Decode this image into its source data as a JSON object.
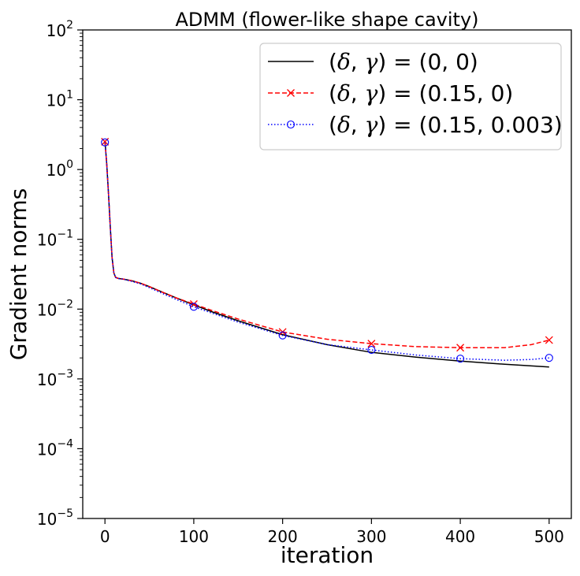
{
  "chart_data": {
    "type": "line",
    "title": "ADMM (flower-like shape cavity)",
    "xlabel": "iteration",
    "ylabel": "Gradient norms",
    "xlim": [
      -25,
      525
    ],
    "ylim": [
      1e-05,
      100
    ],
    "yscale": "log",
    "xticks": [
      0,
      100,
      200,
      300,
      400,
      500
    ],
    "xtick_labels": [
      "0",
      "100",
      "200",
      "300",
      "400",
      "500"
    ],
    "ytick_exponents": [
      -5,
      -4,
      -3,
      -2,
      -1,
      0,
      1,
      2
    ],
    "ytick_base": "10",
    "grid": false,
    "legend_position": "upper-right",
    "series": [
      {
        "name": "(δ, γ) = (0, 0)",
        "legend_prefix": "(",
        "legend_var1": "δ",
        "legend_sep": ", ",
        "legend_var2": "γ",
        "legend_suffix": ") = (0, 0)",
        "color": "#000000",
        "linestyle": "solid",
        "marker": "none",
        "x": [
          0,
          2,
          4,
          6,
          8,
          10,
          12,
          15,
          20,
          30,
          40,
          50,
          60,
          80,
          100,
          120,
          150,
          200,
          250,
          300,
          350,
          400,
          450,
          500
        ],
        "y": [
          2.6,
          1.2,
          0.45,
          0.15,
          0.055,
          0.033,
          0.0285,
          0.0275,
          0.027,
          0.0255,
          0.0235,
          0.021,
          0.0185,
          0.0145,
          0.0115,
          0.0092,
          0.0068,
          0.0043,
          0.0031,
          0.0024,
          0.00205,
          0.0018,
          0.00162,
          0.00148
        ]
      },
      {
        "name": "(δ, γ) = (0.15, 0)",
        "legend_prefix": "(",
        "legend_var1": "δ",
        "legend_sep": ", ",
        "legend_var2": "γ",
        "legend_suffix": ") = (0.15, 0)",
        "color": "#ff0000",
        "linestyle": "dashed",
        "marker": "x",
        "marker_x": [
          0,
          100,
          200,
          300,
          400,
          500
        ],
        "x": [
          0,
          2,
          4,
          6,
          8,
          10,
          12,
          15,
          20,
          30,
          40,
          50,
          60,
          80,
          100,
          120,
          150,
          200,
          250,
          300,
          350,
          400,
          450,
          480,
          500
        ],
        "y": [
          2.5,
          1.2,
          0.45,
          0.15,
          0.055,
          0.033,
          0.0285,
          0.0275,
          0.027,
          0.0255,
          0.0235,
          0.021,
          0.0185,
          0.0145,
          0.0118,
          0.0096,
          0.0072,
          0.0047,
          0.0037,
          0.0032,
          0.0029,
          0.0028,
          0.0028,
          0.0031,
          0.0036
        ]
      },
      {
        "name": "(δ, γ) = (0.15, 0.003)",
        "legend_prefix": "(",
        "legend_var1": "δ",
        "legend_sep": ", ",
        "legend_var2": "γ",
        "legend_suffix": ") = (0.15, 0.003)",
        "color": "#0000ff",
        "linestyle": "dotted",
        "marker": "o",
        "marker_x": [
          0,
          100,
          200,
          300,
          400,
          500
        ],
        "x": [
          0,
          2,
          4,
          6,
          8,
          10,
          12,
          15,
          20,
          30,
          40,
          50,
          60,
          80,
          100,
          120,
          150,
          200,
          250,
          300,
          350,
          400,
          450,
          480,
          500
        ],
        "y": [
          2.45,
          1.2,
          0.45,
          0.15,
          0.055,
          0.033,
          0.0285,
          0.0275,
          0.027,
          0.025,
          0.023,
          0.0203,
          0.0178,
          0.0138,
          0.0108,
          0.0088,
          0.0065,
          0.0042,
          0.0031,
          0.0026,
          0.0022,
          0.00195,
          0.00185,
          0.0019,
          0.002
        ]
      }
    ]
  }
}
